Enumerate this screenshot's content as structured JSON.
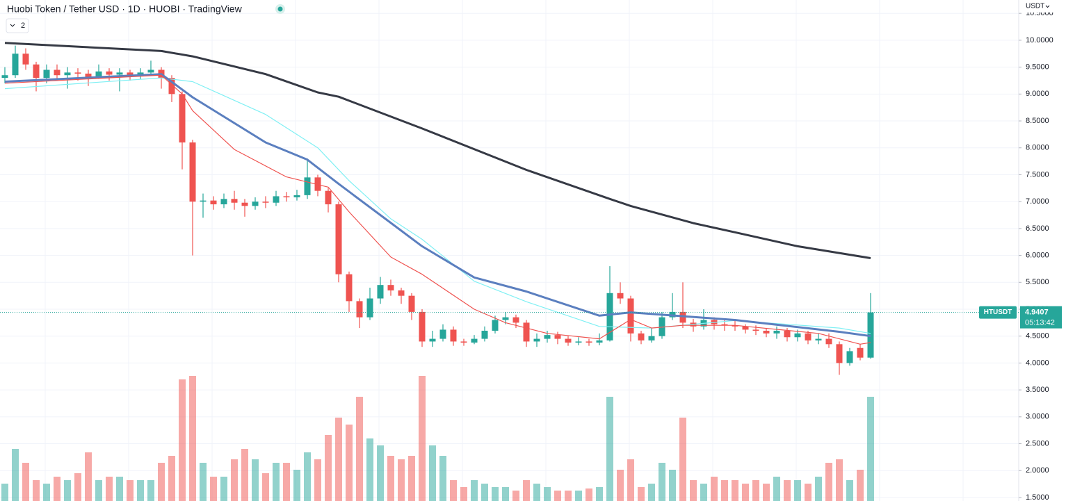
{
  "header": {
    "title": "Huobi Token / Tether USD · 1D · HUOBI · TradingView",
    "indicator_count": "2",
    "currency": "USDT"
  },
  "chart_data": {
    "type": "candlestick",
    "symbol": "HTUSDT",
    "countdown": "05:13:42",
    "up_color": "#26a69a",
    "down_color": "#ef5350",
    "ylim": [
      1.435,
      10.748
    ],
    "yticks": [
      {
        "value": 1.5,
        "label": "1.5000"
      },
      {
        "value": 2,
        "label": "2.0000"
      },
      {
        "value": 2.5,
        "label": "2.5000"
      },
      {
        "value": 3,
        "label": "3.0000"
      },
      {
        "value": 3.5,
        "label": "3.5000"
      },
      {
        "value": 4,
        "label": "4.0000"
      },
      {
        "value": 4.5,
        "label": "4.5000"
      },
      {
        "value": 5,
        "label": "5.0000"
      },
      {
        "value": 5.5,
        "label": "5.5000"
      },
      {
        "value": 6,
        "label": "6.0000"
      },
      {
        "value": 6.5,
        "label": "6.5000"
      },
      {
        "value": 7,
        "label": "7.0000"
      },
      {
        "value": 7.5,
        "label": "7.5000"
      },
      {
        "value": 8,
        "label": "8.0000"
      },
      {
        "value": 8.5,
        "label": "8.5000"
      },
      {
        "value": 9,
        "label": "9.0000"
      },
      {
        "value": 9.5,
        "label": "9.5000"
      },
      {
        "value": 10,
        "label": "10.0000"
      },
      {
        "value": 10.5,
        "label": "10.5000"
      }
    ],
    "grid": true,
    "open": [
      9.3,
      9.35,
      9.75,
      9.55,
      9.3,
      9.45,
      9.35,
      9.4,
      9.38,
      9.32,
      9.42,
      9.36,
      9.4,
      9.33,
      9.4,
      9.45,
      9.3,
      9.0,
      8.1,
      7.0,
      7.02,
      6.95,
      7.05,
      6.98,
      6.92,
      7.0,
      6.98,
      7.1,
      7.08,
      7.12,
      7.45,
      7.2,
      6.95,
      5.65,
      5.15,
      4.85,
      5.2,
      5.45,
      5.35,
      5.25,
      4.95,
      4.4,
      4.45,
      4.62,
      4.4,
      4.38,
      4.45,
      4.6,
      4.8,
      4.85,
      4.75,
      4.4,
      4.45,
      4.52,
      4.45,
      4.38,
      4.4,
      4.38,
      4.42,
      5.3,
      5.2,
      4.55,
      4.42,
      4.5,
      4.85,
      4.95,
      4.75,
      4.68,
      4.8,
      4.72,
      4.7,
      4.68,
      4.62,
      4.6,
      4.55,
      4.6,
      4.48,
      4.55,
      4.42,
      4.45,
      4.35,
      4.0,
      4.28,
      4.1
    ],
    "high": [
      9.5,
      9.9,
      9.85,
      9.6,
      9.55,
      9.55,
      9.5,
      9.48,
      9.45,
      9.55,
      9.48,
      9.48,
      9.45,
      9.48,
      9.62,
      9.5,
      9.35,
      9.05,
      8.15,
      7.15,
      7.1,
      7.15,
      7.2,
      7.05,
      7.08,
      7.1,
      7.2,
      7.18,
      7.22,
      7.8,
      7.5,
      7.25,
      7.0,
      5.7,
      5.2,
      5.4,
      5.6,
      5.55,
      5.4,
      5.3,
      5.0,
      4.6,
      4.72,
      4.68,
      4.45,
      4.52,
      4.68,
      4.88,
      4.95,
      4.9,
      4.8,
      4.55,
      4.6,
      4.58,
      4.5,
      4.48,
      4.45,
      4.55,
      5.8,
      5.5,
      5.25,
      4.6,
      4.65,
      4.95,
      5.3,
      5.5,
      4.82,
      5.0,
      4.85,
      4.8,
      4.78,
      4.72,
      4.7,
      4.65,
      4.68,
      4.65,
      4.62,
      4.6,
      4.55,
      4.55,
      4.4,
      4.28,
      4.35,
      5.3
    ],
    "low": [
      9.2,
      9.3,
      9.45,
      9.05,
      9.2,
      9.25,
      9.1,
      9.25,
      9.15,
      9.28,
      9.25,
      9.05,
      9.25,
      9.28,
      9.35,
      9.1,
      8.85,
      7.6,
      6.0,
      6.7,
      6.85,
      6.88,
      6.85,
      6.72,
      6.85,
      6.88,
      6.92,
      7.0,
      7.02,
      7.05,
      7.1,
      6.8,
      5.5,
      4.95,
      4.65,
      4.8,
      5.1,
      5.25,
      5.1,
      4.8,
      4.3,
      4.3,
      4.4,
      4.32,
      4.32,
      4.35,
      4.4,
      4.55,
      4.72,
      4.65,
      4.3,
      4.3,
      4.38,
      4.35,
      4.32,
      4.33,
      4.32,
      4.33,
      4.4,
      5.1,
      4.4,
      4.35,
      4.38,
      4.45,
      4.8,
      4.65,
      4.58,
      4.62,
      4.62,
      4.6,
      4.6,
      4.55,
      4.52,
      4.48,
      4.45,
      4.4,
      4.4,
      4.35,
      4.35,
      4.28,
      3.78,
      3.95,
      4.05,
      4.08
    ],
    "close": [
      9.35,
      9.75,
      9.55,
      9.3,
      9.45,
      9.35,
      9.4,
      9.38,
      9.32,
      9.42,
      9.36,
      9.4,
      9.33,
      9.4,
      9.45,
      9.3,
      9.0,
      8.1,
      7.0,
      7.02,
      6.95,
      7.05,
      6.98,
      6.92,
      7.0,
      6.98,
      7.1,
      7.08,
      7.12,
      7.45,
      7.2,
      6.95,
      5.65,
      5.15,
      4.85,
      5.2,
      5.45,
      5.35,
      5.25,
      4.95,
      4.4,
      4.45,
      4.62,
      4.4,
      4.38,
      4.45,
      4.6,
      4.8,
      4.85,
      4.75,
      4.4,
      4.45,
      4.52,
      4.45,
      4.38,
      4.4,
      4.38,
      4.42,
      5.3,
      5.2,
      4.55,
      4.42,
      4.5,
      4.85,
      4.95,
      4.75,
      4.68,
      4.8,
      4.72,
      4.7,
      4.68,
      4.62,
      4.6,
      4.55,
      4.6,
      4.48,
      4.55,
      4.42,
      4.45,
      4.35,
      4.0,
      4.22,
      4.1,
      4.9407
    ],
    "volume": [
      25,
      75,
      55,
      30,
      25,
      35,
      30,
      40,
      70,
      30,
      35,
      35,
      30,
      30,
      30,
      55,
      65,
      175,
      180,
      55,
      35,
      35,
      60,
      75,
      60,
      40,
      55,
      55,
      45,
      70,
      60,
      95,
      120,
      110,
      150,
      90,
      80,
      65,
      60,
      65,
      180,
      80,
      65,
      30,
      20,
      30,
      25,
      20,
      20,
      15,
      30,
      25,
      20,
      15,
      15,
      15,
      18,
      20,
      150,
      45,
      60,
      20,
      25,
      55,
      45,
      120,
      30,
      25,
      35,
      30,
      30,
      25,
      30,
      25,
      35,
      30,
      30,
      25,
      35,
      55,
      60,
      30,
      45,
      150
    ],
    "moving_averages": [
      {
        "color": "#363a45",
        "width": 3,
        "x": [
          0,
          15,
          18,
          25,
          30,
          32,
          40,
          50,
          58,
          60,
          66,
          70,
          76,
          83
        ],
        "values": [
          9.95,
          9.8,
          9.7,
          9.37,
          9.03,
          8.95,
          8.36,
          7.59,
          7.05,
          6.92,
          6.6,
          6.43,
          6.17,
          5.95
        ]
      },
      {
        "color": "#80f0f4",
        "width": 1.2,
        "x": [
          0,
          15,
          18,
          25,
          30,
          33,
          37,
          40,
          45,
          50,
          57,
          62,
          70,
          80,
          83
        ],
        "values": [
          9.1,
          9.3,
          9.23,
          8.62,
          8.0,
          7.39,
          6.68,
          6.3,
          5.52,
          5.14,
          4.68,
          4.65,
          4.79,
          4.65,
          4.55
        ]
      },
      {
        "color": "#5b7fbf",
        "width": 3,
        "x": [
          0,
          15,
          18,
          25,
          29,
          32,
          36,
          40,
          45,
          50,
          57,
          60,
          70,
          80,
          83
        ],
        "values": [
          9.23,
          9.37,
          8.94,
          8.1,
          7.78,
          7.33,
          6.75,
          6.17,
          5.59,
          5.33,
          4.88,
          4.94,
          4.8,
          4.58,
          4.5
        ]
      },
      {
        "color": "#ef5350",
        "width": 1.2,
        "x": [
          0,
          15,
          17,
          18,
          22,
          27,
          31,
          33,
          37,
          40,
          45,
          48,
          52,
          57,
          60,
          62,
          65,
          70,
          78,
          80,
          82,
          83
        ],
        "values": [
          9.2,
          9.35,
          9.0,
          8.69,
          7.97,
          7.46,
          7.27,
          6.81,
          5.97,
          5.65,
          5.0,
          4.75,
          4.55,
          4.45,
          4.81,
          4.65,
          4.7,
          4.7,
          4.55,
          4.45,
          4.35,
          4.38
        ]
      }
    ]
  }
}
